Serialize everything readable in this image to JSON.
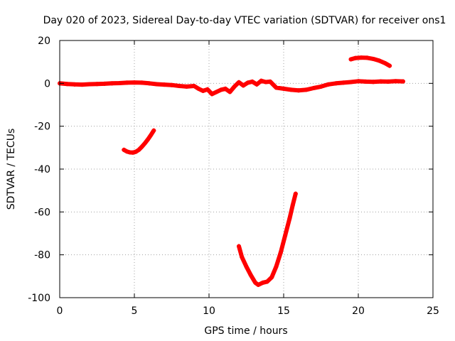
{
  "chart_data": {
    "type": "line",
    "title": "Day 020 of 2023, Sidereal Day-to-day VTEC variation (SDTVAR) for receiver ons1",
    "xlabel": "GPS time / hours",
    "ylabel": "SDTVAR / TECUs",
    "xlim": [
      0,
      25
    ],
    "ylim": [
      -100,
      20
    ],
    "xticks": [
      0,
      5,
      10,
      15,
      20,
      25
    ],
    "yticks": [
      -100,
      -80,
      -60,
      -40,
      -20,
      0,
      20
    ],
    "xtick_labels": [
      "0",
      "5",
      "10",
      "15",
      "20",
      "25"
    ],
    "ytick_labels": [
      "-100",
      "-80",
      "-60",
      "-40",
      "-20",
      "0",
      "20"
    ],
    "grid": true,
    "legend": false,
    "color": "#ff0000",
    "series": [
      {
        "name": "main-trace",
        "x": [
          0,
          0.5,
          1,
          1.5,
          2,
          2.5,
          3,
          3.5,
          4,
          4.5,
          5,
          5.5,
          6,
          6.5,
          7,
          7.5,
          8,
          8.5,
          9,
          9.3,
          9.6,
          9.9,
          10.2,
          10.5,
          10.8,
          11.1,
          11.4,
          11.7,
          12,
          12.3,
          12.6,
          12.9,
          13.2,
          13.5,
          13.8,
          14.1,
          14.5,
          15,
          15.5,
          16,
          16.5,
          17,
          17.5,
          18,
          18.5,
          19,
          19.5,
          20,
          20.5,
          21,
          21.5,
          22,
          22.5,
          23
        ],
        "y": [
          0,
          -0.3,
          -0.5,
          -0.6,
          -0.4,
          -0.3,
          -0.2,
          0,
          0.1,
          0.3,
          0.4,
          0.3,
          0,
          -0.4,
          -0.6,
          -0.8,
          -1.2,
          -1.5,
          -1.2,
          -2.5,
          -3.5,
          -2.8,
          -5,
          -4,
          -3,
          -2.5,
          -4,
          -1.5,
          0.5,
          -1,
          0.3,
          0.8,
          -0.5,
          1.2,
          0.6,
          0.8,
          -2,
          -2.5,
          -3,
          -3.3,
          -3,
          -2.2,
          -1.5,
          -0.5,
          0,
          0.3,
          0.6,
          1,
          0.8,
          0.7,
          0.9,
          0.8,
          1,
          0.9
        ]
      },
      {
        "name": "segment-upper-right",
        "x": [
          19.5,
          19.8,
          20.2,
          20.6,
          21,
          21.4,
          21.8,
          22.1
        ],
        "y": [
          11.2,
          11.8,
          12,
          11.9,
          11.4,
          10.6,
          9.4,
          8.2
        ]
      },
      {
        "name": "segment-mid-left",
        "x": [
          4.3,
          4.5,
          4.7,
          4.9,
          5.1,
          5.3,
          5.5,
          5.7,
          5.9,
          6.1,
          6.3
        ],
        "y": [
          -31,
          -31.8,
          -32.2,
          -32.3,
          -31.9,
          -31,
          -29.6,
          -28,
          -26.2,
          -24.2,
          -22
        ]
      },
      {
        "name": "segment-lower-curve",
        "x": [
          12,
          12.2,
          12.5,
          12.8,
          13.1,
          13.3,
          13.6,
          13.9,
          14.2,
          14.5,
          14.8,
          15.1,
          15.4,
          15.6,
          15.8
        ],
        "y": [
          -76,
          -81,
          -85.5,
          -89.5,
          -93,
          -94,
          -93,
          -92.5,
          -90.5,
          -85.5,
          -79,
          -71,
          -63,
          -57,
          -51.5
        ]
      }
    ]
  }
}
